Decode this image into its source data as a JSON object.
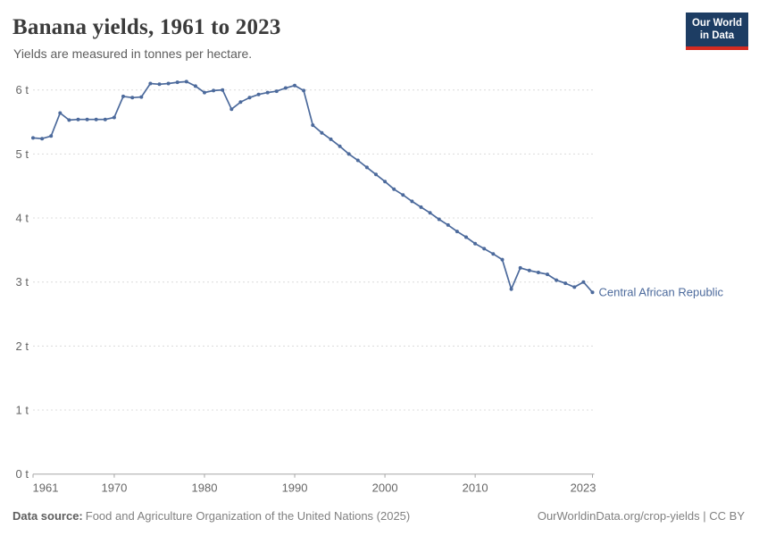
{
  "header": {
    "title": "Banana yields, 1961 to 2023",
    "subtitle": "Yields are measured in tonnes per hectare."
  },
  "logo": {
    "line1": "Our World",
    "line2": "in Data",
    "bg_color": "#1D3D63",
    "accent_color": "#D42B21"
  },
  "footer": {
    "source_label": "Data source:",
    "source_text": "Food and Agriculture Organization of the United Nations (2025)",
    "credit": "OurWorldinData.org/crop-yields | CC BY"
  },
  "chart_data": {
    "type": "line",
    "title": "Banana yields, 1961 to 2023",
    "subtitle": "Yields are measured in tonnes per hectare.",
    "unit": "tonnes per hectare",
    "xlim": [
      1961,
      2023
    ],
    "ylim": [
      0,
      6
    ],
    "x_ticks": [
      1961,
      1970,
      1980,
      1990,
      2000,
      2010,
      2023
    ],
    "y_ticks": [
      0,
      1,
      2,
      3,
      4,
      5,
      6
    ],
    "y_tick_suffix": " t",
    "grid": "horizontal-dashed",
    "legend_position": "end-of-line-label",
    "series": [
      {
        "name": "Central African Republic",
        "color": "#4C6A9C",
        "x": [
          1961,
          1962,
          1963,
          1964,
          1965,
          1966,
          1967,
          1968,
          1969,
          1970,
          1971,
          1972,
          1973,
          1974,
          1975,
          1976,
          1977,
          1978,
          1979,
          1980,
          1981,
          1982,
          1983,
          1984,
          1985,
          1986,
          1987,
          1988,
          1989,
          1990,
          1991,
          1992,
          1993,
          1994,
          1995,
          1996,
          1997,
          1998,
          1999,
          2000,
          2001,
          2002,
          2003,
          2004,
          2005,
          2006,
          2007,
          2008,
          2009,
          2010,
          2011,
          2012,
          2013,
          2014,
          2015,
          2016,
          2017,
          2018,
          2019,
          2020,
          2021,
          2022,
          2023
        ],
        "values": [
          5.25,
          5.24,
          5.28,
          5.64,
          5.53,
          5.54,
          5.54,
          5.54,
          5.54,
          5.57,
          5.9,
          5.88,
          5.89,
          6.1,
          6.09,
          6.1,
          6.12,
          6.13,
          6.06,
          5.96,
          5.99,
          6.0,
          5.7,
          5.81,
          5.88,
          5.93,
          5.96,
          5.98,
          6.03,
          6.07,
          5.99,
          5.45,
          5.33,
          5.23,
          5.12,
          5.0,
          4.9,
          4.79,
          4.68,
          4.57,
          4.45,
          4.36,
          4.26,
          4.17,
          4.08,
          3.98,
          3.89,
          3.79,
          3.7,
          3.6,
          3.52,
          3.44,
          3.35,
          2.89,
          3.22,
          3.18,
          3.15,
          3.12,
          3.03,
          2.98,
          2.92,
          3.0,
          2.84
        ]
      }
    ]
  }
}
